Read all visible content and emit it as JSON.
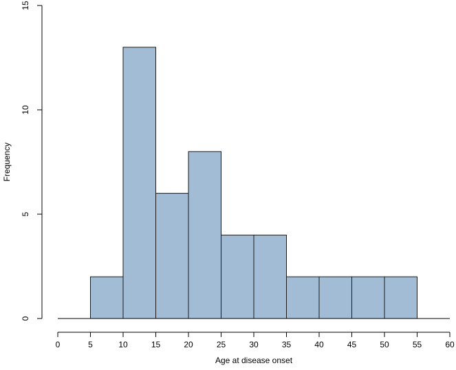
{
  "chart_data": {
    "type": "bar",
    "bins": [
      {
        "start": 5,
        "end": 10,
        "value": 2
      },
      {
        "start": 10,
        "end": 15,
        "value": 13
      },
      {
        "start": 15,
        "end": 20,
        "value": 6
      },
      {
        "start": 20,
        "end": 25,
        "value": 8
      },
      {
        "start": 25,
        "end": 30,
        "value": 4
      },
      {
        "start": 30,
        "end": 35,
        "value": 4
      },
      {
        "start": 35,
        "end": 40,
        "value": 2
      },
      {
        "start": 40,
        "end": 45,
        "value": 2
      },
      {
        "start": 45,
        "end": 50,
        "value": 2
      },
      {
        "start": 50,
        "end": 55,
        "value": 2
      }
    ],
    "title": "",
    "xlabel": "Age at disease onset",
    "ylabel": "Frequency",
    "xlim": [
      0,
      60
    ],
    "ylim": [
      0,
      15
    ],
    "x_ticks": [
      "0",
      "5",
      "10",
      "15",
      "20",
      "25",
      "30",
      "35",
      "40",
      "45",
      "50",
      "55",
      "60"
    ],
    "y_ticks": [
      "0",
      "5",
      "10",
      "15"
    ],
    "grid": false,
    "legend": "none",
    "colors": {
      "bar_fill": "#a2bcd6",
      "bar_stroke": "#1a1a1a",
      "axis": "#000000"
    }
  }
}
